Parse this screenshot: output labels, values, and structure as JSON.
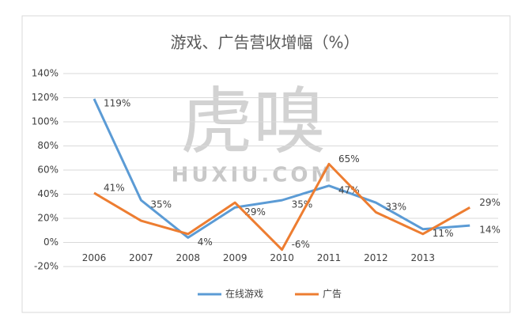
{
  "chart_data": {
    "type": "line",
    "title": "游戏、广告营收增幅（%）",
    "watermark": [
      "虎嗅",
      "HUXIU.COM"
    ],
    "categories": [
      "2006",
      "2007",
      "2008",
      "2009",
      "2010",
      "2011",
      "2012",
      "2013",
      null
    ],
    "series": [
      {
        "name": "在线游戏",
        "color": "#5b9bd5",
        "values": [
          119,
          35,
          4,
          29,
          35,
          47,
          33,
          11,
          14
        ],
        "value_labels": [
          "119%",
          "35%",
          "4%",
          "29%",
          "35%",
          "47%",
          "33%",
          "11%",
          "14%"
        ]
      },
      {
        "name": "广告",
        "color": "#ed7d31",
        "values": [
          41,
          18,
          7,
          33,
          -6,
          65,
          25,
          7,
          29
        ],
        "value_labels": [
          "41%",
          null,
          null,
          null,
          "-6%",
          "65%",
          null,
          null,
          "29%"
        ]
      }
    ],
    "ylim": [
      -20,
      140
    ],
    "yticks": [
      {
        "value": -20,
        "label": "-20%"
      },
      {
        "value": 0,
        "label": "0%"
      },
      {
        "value": 20,
        "label": "20%"
      },
      {
        "value": 40,
        "label": "40%"
      },
      {
        "value": 60,
        "label": "60%"
      },
      {
        "value": 80,
        "label": "80%"
      },
      {
        "value": 100,
        "label": "100%"
      },
      {
        "value": 120,
        "label": "120%"
      },
      {
        "value": 140,
        "label": "140%"
      }
    ],
    "grid": true,
    "legend": "bottom"
  }
}
